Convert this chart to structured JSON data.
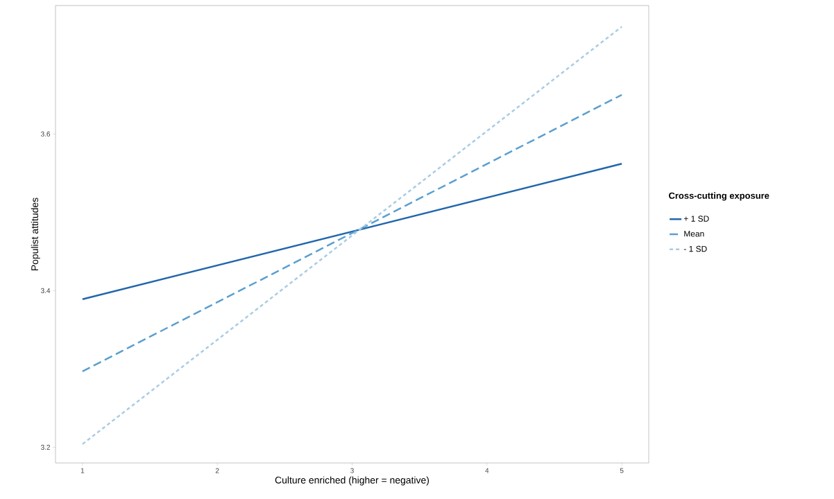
{
  "chart_data": {
    "type": "line",
    "xlabel": "Culture enriched (higher = negative)",
    "ylabel": "Populist attitudes",
    "legend_title": "Cross-cutting exposure",
    "x": [
      1,
      5
    ],
    "series": [
      {
        "name": "+ 1 SD",
        "color": "#2166ac",
        "values": [
          3.389,
          3.562
        ],
        "line_style": "solid"
      },
      {
        "name": "Mean",
        "color": "#5a9fd0",
        "values": [
          3.297,
          3.65
        ],
        "line_style": "dashed"
      },
      {
        "name": "- 1 SD",
        "color": "#a9cce4",
        "values": [
          3.204,
          3.737
        ],
        "line_style": "dotted"
      }
    ],
    "xlim": [
      0.8,
      5.2
    ],
    "ylim": [
      3.18,
      3.764
    ],
    "xticks": [
      1,
      2,
      3,
      4,
      5
    ],
    "yticks": [
      3.2,
      3.4,
      3.6
    ],
    "grid": false,
    "legend": "right",
    "marker": "none"
  }
}
